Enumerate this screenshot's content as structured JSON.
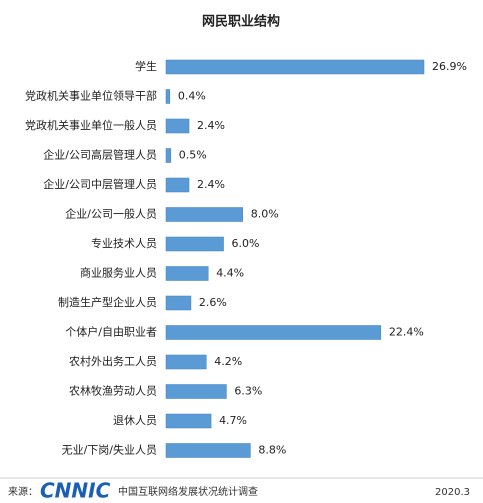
{
  "chart_data": {
    "type": "hbar",
    "title": "网民职业结构",
    "categories": [
      "学生",
      "党政机关事业单位领导干部",
      "党政机关事业单位一般人员",
      "企业/公司高层管理人员",
      "企业/公司中层管理人员",
      "企业/公司一般人员",
      "专业技术人员",
      "商业服务业人员",
      "制造生产型企业人员",
      "个体户/自由职业者",
      "农村外出务工人员",
      "农林牧渔劳动人员",
      "退休人员",
      "无业/下岗/失业人员"
    ],
    "values": [
      26.9,
      0.4,
      2.4,
      0.5,
      2.4,
      8.0,
      6.0,
      4.4,
      2.6,
      22.4,
      4.2,
      6.3,
      4.7,
      8.8
    ],
    "value_labels": [
      "26.9%",
      "0.4%",
      "2.4%",
      "0.5%",
      "2.4%",
      "8.0%",
      "6.0%",
      "4.4%",
      "2.6%",
      "22.4%",
      "4.2%",
      "6.3%",
      "4.7%",
      "8.8%"
    ],
    "color": "#5b9bd5"
  },
  "footer": {
    "source_label": "来源：",
    "logo": "CNNIC",
    "source": "中国互联网络发展状况统计调查",
    "date": "2020.3"
  }
}
